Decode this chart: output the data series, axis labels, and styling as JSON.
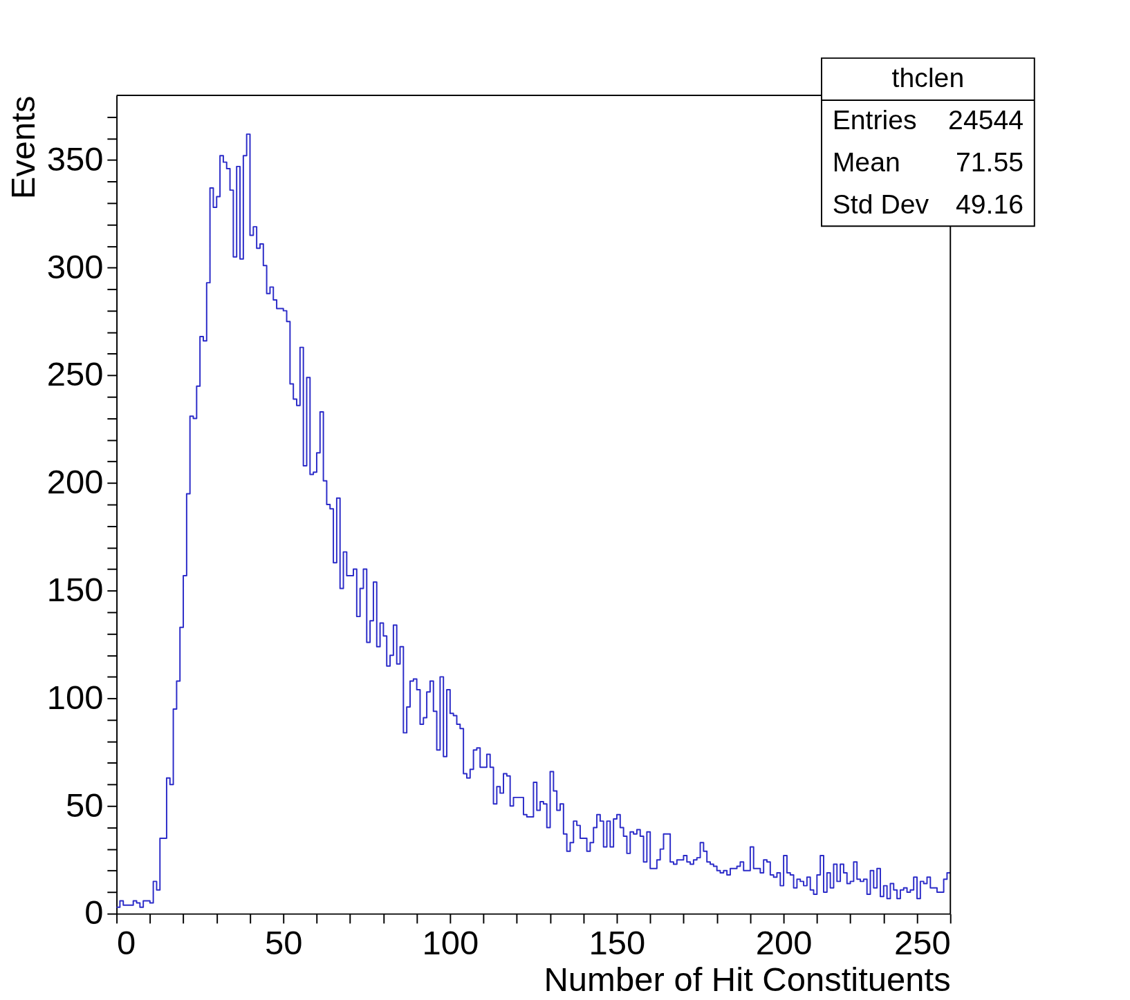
{
  "chart_data": {
    "type": "histogram",
    "xlabel": "Number of Hit Constituents",
    "ylabel": "Events",
    "bins": [
      0,
      1,
      2,
      3,
      4,
      5,
      6,
      7,
      8,
      9,
      10,
      11,
      12,
      13,
      14,
      15,
      16,
      17,
      18,
      19,
      20,
      21,
      22,
      23,
      24,
      25,
      26,
      27,
      28,
      29,
      30,
      31,
      32,
      33,
      34,
      35,
      36,
      37,
      38,
      39,
      40,
      41,
      42,
      43,
      44,
      45,
      46,
      47,
      48,
      49,
      50,
      51,
      52,
      53,
      54,
      55,
      56,
      57,
      58,
      59,
      60,
      61,
      62,
      63,
      64,
      65,
      66,
      67,
      68,
      69,
      70,
      71,
      72,
      73,
      74,
      75,
      76,
      77,
      78,
      79,
      80,
      81,
      82,
      83,
      84,
      85,
      86,
      87,
      88,
      89,
      90,
      91,
      92,
      93,
      94,
      95,
      96,
      97,
      98,
      99,
      100,
      101,
      102,
      103,
      104,
      105,
      106,
      107,
      108,
      109,
      110,
      111,
      112,
      113,
      114,
      115,
      116,
      117,
      118,
      119,
      120,
      121,
      122,
      123,
      124,
      125,
      126,
      127,
      128,
      129,
      130,
      131,
      132,
      133,
      134,
      135,
      136,
      137,
      138,
      139,
      140,
      141,
      142,
      143,
      144,
      145,
      146,
      147,
      148,
      149,
      150,
      151,
      152,
      153,
      154,
      155,
      156,
      157,
      158,
      159,
      160,
      161,
      162,
      163,
      164,
      165,
      166,
      167,
      168,
      169,
      170,
      171,
      172,
      173,
      174,
      175,
      176,
      177,
      178,
      179,
      180,
      181,
      182,
      183,
      184,
      185,
      186,
      187,
      188,
      189,
      190,
      191,
      192,
      193,
      194,
      195,
      196,
      197,
      198,
      199,
      200,
      201,
      202,
      203,
      204,
      205,
      206,
      207,
      208,
      209,
      210,
      211,
      212,
      213,
      214,
      215,
      216,
      217,
      218,
      219,
      220,
      221,
      222,
      223,
      224,
      225,
      226,
      227,
      228,
      229,
      230,
      231,
      232,
      233,
      234,
      235,
      236,
      237,
      238,
      239,
      240,
      241,
      242,
      243,
      244,
      245,
      246,
      247,
      248,
      249,
      250
    ],
    "values": [
      3,
      6,
      4,
      4,
      4,
      6,
      5,
      3,
      6,
      6,
      5,
      15,
      11,
      35,
      35,
      63,
      60,
      95,
      108,
      133,
      157,
      195,
      231,
      230,
      245,
      268,
      266,
      293,
      337,
      328,
      333,
      352,
      349,
      346,
      336,
      305,
      347,
      304,
      352,
      362,
      315,
      319,
      309,
      311,
      301,
      288,
      291,
      285,
      281,
      281,
      280,
      275,
      246,
      239,
      236,
      263,
      208,
      249,
      204,
      205,
      214,
      233,
      201,
      190,
      188,
      163,
      193,
      151,
      168,
      157,
      157,
      160,
      138,
      151,
      160,
      126,
      136,
      154,
      124,
      135,
      129,
      115,
      120,
      134,
      116,
      124,
      84,
      96,
      108,
      109,
      104,
      88,
      91,
      103,
      108,
      94,
      76,
      110,
      73,
      104,
      93,
      92,
      88,
      86,
      65,
      63,
      67,
      76,
      77,
      68,
      68,
      74,
      68,
      51,
      59,
      56,
      65,
      64,
      50,
      54,
      54,
      54,
      46,
      45,
      45,
      61,
      48,
      52,
      51,
      40,
      66,
      57,
      48,
      51,
      37,
      29,
      33,
      43,
      41,
      35,
      35,
      29,
      33,
      40,
      46,
      43,
      31,
      43,
      31,
      44,
      46,
      40,
      36,
      28,
      38,
      37,
      39,
      36,
      24,
      38,
      21,
      21,
      25,
      30,
      37,
      37,
      24,
      23,
      25,
      25,
      27,
      24,
      23,
      25,
      26,
      33,
      29,
      24,
      23,
      22,
      20,
      19,
      20,
      18,
      21,
      21,
      22,
      24,
      20,
      20,
      31,
      21,
      21,
      19,
      25,
      24,
      18,
      17,
      19,
      13,
      27,
      19,
      18,
      12,
      16,
      15,
      13,
      17,
      11,
      9,
      18,
      27,
      10,
      19,
      12,
      23,
      15,
      23,
      19,
      14,
      15,
      24,
      16,
      15,
      16,
      9,
      20,
      12,
      21,
      8,
      13,
      7,
      14,
      11,
      7,
      11,
      12,
      10,
      11,
      17,
      7,
      15,
      14,
      17,
      12,
      12,
      10,
      10,
      16,
      19
    ],
    "color": "#2b2bc8",
    "xlim": [
      0,
      250
    ],
    "ylim": [
      0,
      380
    ],
    "xticks": [
      0,
      {
        "value": 10,
        "label": null
      },
      {
        "value": 20,
        "label": null
      },
      {
        "value": 30,
        "label": null
      },
      {
        "value": 40,
        "label": null
      },
      50,
      {
        "value": 60,
        "label": null
      },
      {
        "value": 70,
        "label": null
      },
      {
        "value": 80,
        "label": null
      },
      {
        "value": 90,
        "label": null
      },
      100,
      {
        "value": 110,
        "label": null
      },
      {
        "value": 120,
        "label": null
      },
      {
        "value": 130,
        "label": null
      },
      {
        "value": 140,
        "label": null
      },
      150,
      {
        "value": 160,
        "label": null
      },
      {
        "value": 170,
        "label": null
      },
      {
        "value": 180,
        "label": null
      },
      {
        "value": 190,
        "label": null
      },
      200,
      {
        "value": 210,
        "label": null
      },
      {
        "value": 220,
        "label": null
      },
      {
        "value": 230,
        "label": null
      },
      {
        "value": 240,
        "label": null
      },
      250
    ],
    "yticks": [
      0,
      {
        "value": 10,
        "label": null
      },
      {
        "value": 20,
        "label": null
      },
      {
        "value": 30,
        "label": null
      },
      {
        "value": 40,
        "label": null
      },
      50,
      {
        "value": 60,
        "label": null
      },
      {
        "value": 70,
        "label": null
      },
      {
        "value": 80,
        "label": null
      },
      {
        "value": 90,
        "label": null
      },
      100,
      {
        "value": 110,
        "label": null
      },
      {
        "value": 120,
        "label": null
      },
      {
        "value": 130,
        "label": null
      },
      {
        "value": 140,
        "label": null
      },
      150,
      {
        "value": 160,
        "label": null
      },
      {
        "value": 170,
        "label": null
      },
      {
        "value": 180,
        "label": null
      },
      {
        "value": 190,
        "label": null
      },
      200,
      {
        "value": 210,
        "label": null
      },
      {
        "value": 220,
        "label": null
      },
      {
        "value": 230,
        "label": null
      },
      {
        "value": 240,
        "label": null
      },
      250,
      {
        "value": 260,
        "label": null
      },
      {
        "value": 270,
        "label": null
      },
      {
        "value": 280,
        "label": null
      },
      {
        "value": 290,
        "label": null
      },
      300,
      {
        "value": 310,
        "label": null
      },
      {
        "value": 320,
        "label": null
      },
      {
        "value": 330,
        "label": null
      },
      {
        "value": 340,
        "label": null
      },
      350,
      {
        "value": 360,
        "label": null
      },
      {
        "value": 370,
        "label": null
      }
    ],
    "grid": false,
    "annotations": [
      "thclen",
      "Entries",
      "24544",
      "Mean",
      "71.55",
      "Std Dev",
      "49.16"
    ]
  }
}
